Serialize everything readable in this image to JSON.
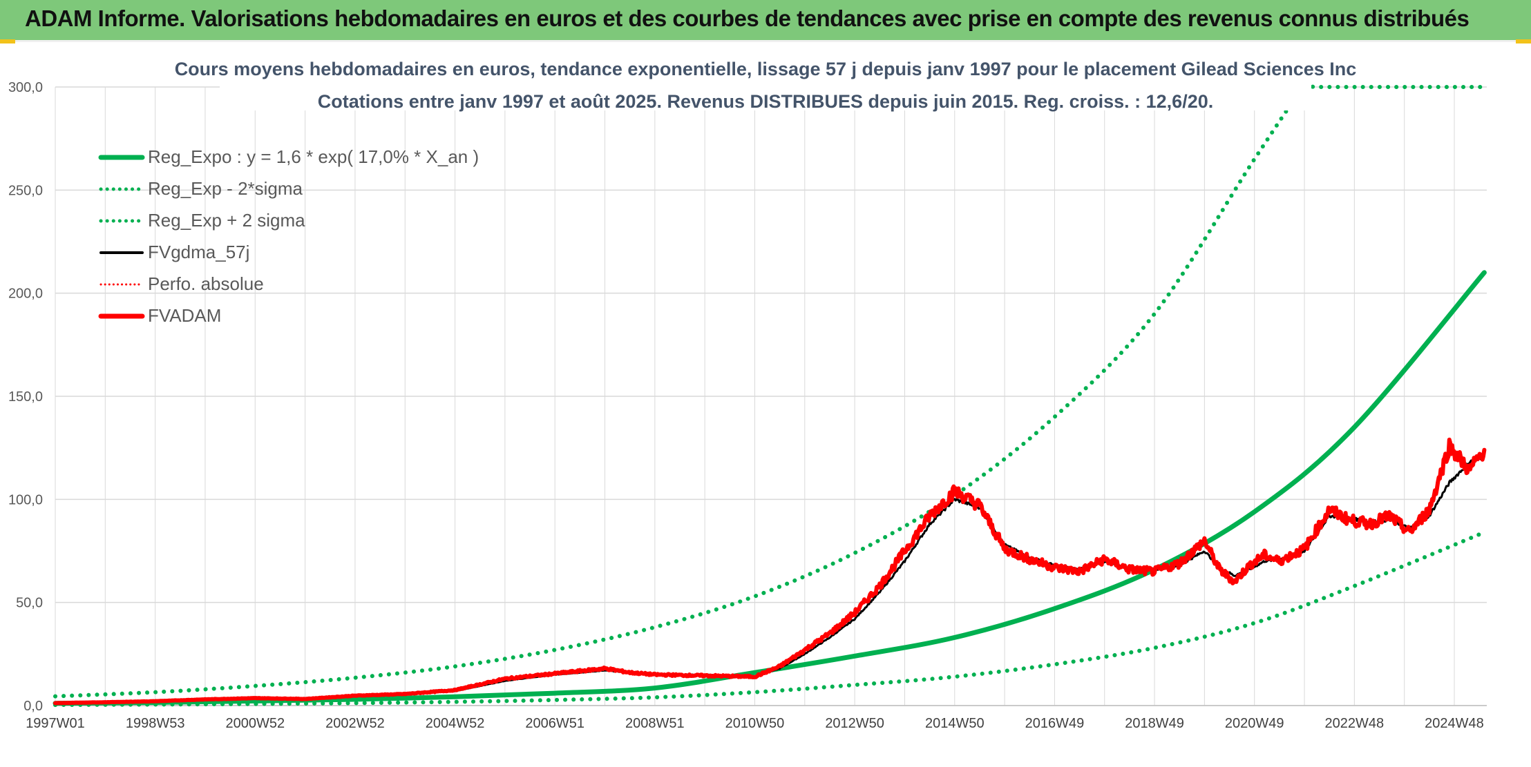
{
  "banner": {
    "title": "ADAM Informe. Valorisations hebdomadaires en euros et des courbes de tendances avec prise en compte des revenus connus distribués"
  },
  "colors": {
    "banner_bg": "#7ec87a",
    "reg_expo": "#00b050",
    "fvgdma": "#000000",
    "fvadam": "#ff0000",
    "grid": "#d9d9d9",
    "corner": "#f2c21a"
  },
  "chart_data": {
    "type": "line",
    "title_line1": "Cours moyens hebdomadaires en euros, tendance exponentielle, lissage 57 j depuis janv 1997 pour le placement Gilead Sciences Inc",
    "title_line2": "Cotations entre janv 1997 et août 2025. Revenus DISTRIBUES depuis juin 2015. Reg. croiss. : 12,6/20.",
    "xlabel": "",
    "ylabel": "",
    "ylim": [
      0,
      300
    ],
    "ytick_labels": [
      "0,0",
      "50,0",
      "100,0",
      "150,0",
      "200,0",
      "250,0",
      "300,0"
    ],
    "xlim": [
      1997.0,
      2025.65
    ],
    "xtick_labels": [
      "1997W01",
      "1998W53",
      "2000W52",
      "2002W52",
      "2004W52",
      "2006W51",
      "2008W51",
      "2010W50",
      "2012W50",
      "2014W50",
      "2016W49",
      "2018W49",
      "2020W49",
      "2022W48",
      "2024W48"
    ],
    "grid": true,
    "legend_position": "top-left",
    "legend": [
      "Reg_Expo : y = 1,6 * exp( 17,0% *  X_an )",
      "Reg_Exp - 2*sigma",
      "Reg_Exp + 2 sigma",
      "FVgdma_57j",
      "Perfo. absolue",
      "FVADAM"
    ],
    "series": [
      {
        "name": "Reg_Expo : y = 1,6 * exp( 17,0% *  X_an )",
        "style": "solid",
        "x": [
          1997,
          1999,
          2001,
          2003,
          2005,
          2007,
          2009,
          2011,
          2013,
          2015,
          2017,
          2019,
          2021,
          2023,
          2025.6
        ],
        "y": [
          1.1,
          1.5,
          2.2,
          3.0,
          4.3,
          6.0,
          8.5,
          16,
          24,
          33,
          47,
          66,
          94,
          135,
          210
        ]
      },
      {
        "name": "Reg_Exp - 2*sigma",
        "style": "dotted",
        "x": [
          1997,
          1999,
          2001,
          2003,
          2005,
          2007,
          2009,
          2011,
          2013,
          2015,
          2017,
          2019,
          2021,
          2023,
          2025.6
        ],
        "y": [
          0.3,
          0.5,
          0.8,
          1.2,
          1.8,
          2.7,
          4.0,
          6.5,
          10,
          14,
          20,
          28,
          40,
          58,
          84
        ]
      },
      {
        "name": "Reg_Exp + 2 sigma",
        "style": "dotted",
        "x": [
          1997,
          1999,
          2001,
          2003,
          2005,
          2007,
          2009,
          2011,
          2013,
          2015,
          2017,
          2019,
          2021,
          2022.0,
          2022.3,
          2025.6
        ],
        "y": [
          4.5,
          6.5,
          9.5,
          13.5,
          19,
          27,
          38,
          53,
          74,
          102,
          140,
          190,
          265,
          300,
          300,
          300
        ]
      },
      {
        "name": "FVgdma_57j",
        "style": "solid",
        "x": [
          1997,
          1998,
          1999,
          2000,
          2001,
          2002,
          2003,
          2004,
          2005,
          2006,
          2007,
          2008,
          2008.5,
          2009,
          2010,
          2011,
          2011.5,
          2012,
          2012.5,
          2013,
          2013.5,
          2014,
          2014.5,
          2015,
          2015.5,
          2016,
          2016.5,
          2017,
          2017.5,
          2018,
          2018.5,
          2019,
          2019.5,
          2020,
          2020.3,
          2020.6,
          2020.9,
          2021.2,
          2021.5,
          2022,
          2022.5,
          2022.9,
          2023.3,
          2023.7,
          2024.1,
          2024.5,
          2024.9,
          2025.3,
          2025.6
        ],
        "y": [
          1.2,
          1.5,
          2.0,
          2.8,
          3.5,
          3.3,
          4.5,
          5.5,
          7.0,
          12,
          15,
          17,
          16,
          15,
          15,
          14,
          18,
          25,
          33,
          42,
          55,
          70,
          88,
          100,
          96,
          78,
          72,
          68,
          66,
          70,
          67,
          66,
          68,
          75,
          67,
          63,
          66,
          70,
          71,
          75,
          92,
          91,
          89,
          90,
          86,
          92,
          108,
          118,
          121
        ]
      },
      {
        "name": "FVADAM",
        "style": "solid",
        "x": [
          1997,
          1998,
          1999,
          2000,
          2001,
          2002,
          2003,
          2004,
          2005,
          2006,
          2007,
          2008,
          2008.5,
          2009,
          2010,
          2011,
          2011.5,
          2012,
          2012.5,
          2013,
          2013.5,
          2014,
          2014.5,
          2015,
          2015.5,
          2016,
          2016.5,
          2017,
          2017.5,
          2018,
          2018.5,
          2019,
          2019.5,
          2020,
          2020.3,
          2020.6,
          2020.9,
          2021.2,
          2021.5,
          2022,
          2022.5,
          2022.9,
          2023.3,
          2023.7,
          2024.1,
          2024.5,
          2024.9,
          2025.3,
          2025.6
        ],
        "y": [
          1.2,
          1.6,
          2.1,
          3.0,
          3.6,
          3.2,
          4.8,
          5.6,
          7.5,
          13,
          15.5,
          18,
          16,
          15,
          14.5,
          14,
          19,
          27,
          35,
          45,
          58,
          75,
          92,
          104,
          97,
          76,
          71,
          67,
          65,
          71,
          66,
          65,
          69,
          80,
          66,
          60,
          68,
          73,
          70,
          76,
          95,
          90,
          88,
          92,
          84,
          95,
          126,
          114,
          124
        ]
      }
    ]
  }
}
